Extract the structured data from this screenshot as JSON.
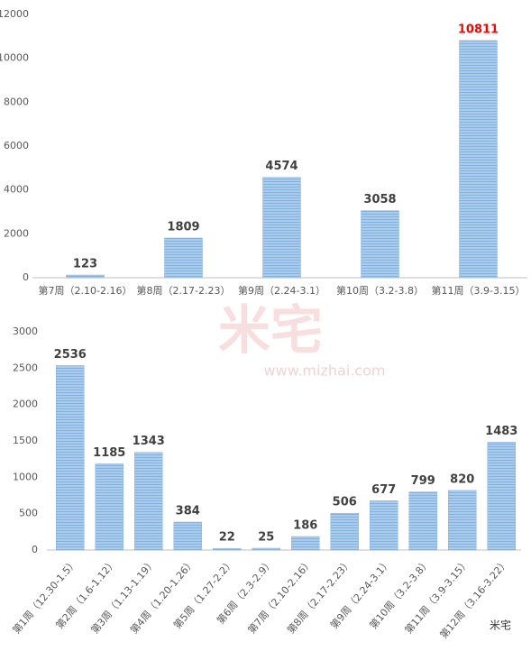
{
  "chart_data": [
    {
      "type": "bar",
      "categories": [
        "第7周（2.10-2.16）",
        "第8周（2.17-2.23）",
        "第9周（2.24-3.1）",
        "第10周（3.2-3.8）",
        "第11周（3.9-3.15）"
      ],
      "values": [
        123,
        1809,
        4574,
        3058,
        10811
      ],
      "color": "#9dc3e6",
      "label_colors": [
        "#404040",
        "#404040",
        "#404040",
        "#404040",
        "#ff0000"
      ],
      "ylim": [
        0,
        12000
      ],
      "yticks": [
        0,
        2000,
        4000,
        6000,
        8000,
        10000,
        12000
      ],
      "grid": false
    },
    {
      "type": "bar",
      "categories": [
        "第1周（12.30-1.5）",
        "第2周（1.6-1.12）",
        "第3周（1.13-1.19）",
        "第4周（1.20-1.26）",
        "第5周（1.27-2.2）",
        "第6周（2.3-2.9）",
        "第7周（2.10-2.16）",
        "第8周（2.17-2.23）",
        "第9周（2.24-3.1）",
        "第10周（3.2-3.8）",
        "第11周（3.9-3.15）",
        "第12周（3.16-3.22）"
      ],
      "values": [
        2536,
        1185,
        1343,
        384,
        22,
        25,
        186,
        506,
        677,
        799,
        820,
        1483
      ],
      "color": "#9dc3e6",
      "label_colors": [
        "#404040",
        "#404040",
        "#404040",
        "#404040",
        "#404040",
        "#404040",
        "#404040",
        "#404040",
        "#404040",
        "#404040",
        "#404040",
        "#404040"
      ],
      "ylim": [
        0,
        3000
      ],
      "yticks": [
        0,
        500,
        1000,
        1500,
        2000,
        2500,
        3000
      ],
      "grid": false
    }
  ],
  "watermark": {
    "text": "米宅",
    "url": "www.mizhai.com"
  },
  "logo": {
    "text": "米宅"
  }
}
